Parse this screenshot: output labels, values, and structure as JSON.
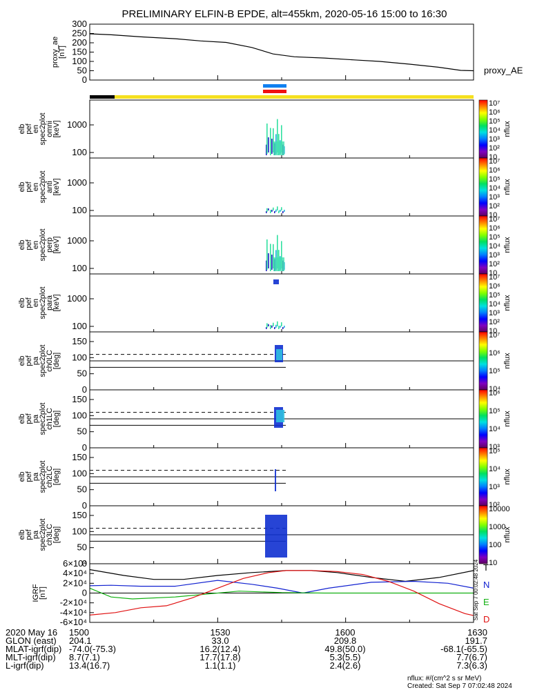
{
  "chart_data": {
    "type": "spectrogram-stack",
    "title": "PRELIMINARY ELFIN-B EPDE, alt=455km, 2020-05-16 15:00 to 16:30",
    "x_range": [
      "2020-05-16 15:00",
      "2020-05-16 16:30"
    ],
    "x_tick_labels": [
      "1500",
      "1530",
      "1600",
      "1630"
    ],
    "panels": [
      {
        "type": "line",
        "ylabel": [
          "proxy_ae",
          "[nT]"
        ],
        "ylim": [
          0,
          300
        ],
        "yticks": [
          "0",
          "50",
          "100",
          "150",
          "200",
          "250",
          "300"
        ],
        "series": [
          {
            "name": "proxy_AE",
            "color": "#000000",
            "points": [
              [
                0,
                248
              ],
              [
                5,
                243
              ],
              [
                12,
                232
              ],
              [
                20,
                222
              ],
              [
                26,
                210
              ],
              [
                32,
                202
              ],
              [
                38,
                175
              ],
              [
                43,
                140
              ],
              [
                48,
                125
              ],
              [
                55,
                118
              ],
              [
                62,
                108
              ],
              [
                68,
                100
              ],
              [
                75,
                85
              ],
              [
                82,
                68
              ],
              [
                87,
                52
              ],
              [
                90,
                50
              ]
            ]
          }
        ]
      },
      {
        "type": "spectrogram",
        "ylabel": [
          "elb",
          "pef",
          "en",
          "spec2plot",
          "omni",
          "[keV]"
        ],
        "yticks": [
          "100",
          "1000"
        ],
        "colorbar_label": "nflux",
        "colorbar_ticks": [
          "10",
          "10²",
          "10³",
          "10⁴",
          "10⁵",
          "10⁶",
          "10⁷"
        ]
      },
      {
        "type": "spectrogram",
        "ylabel": [
          "elb",
          "pef",
          "en",
          "spec2plot",
          "anti",
          "[keV]"
        ],
        "yticks": [
          "100",
          "1000"
        ],
        "colorbar_label": "nflux",
        "colorbar_ticks": [
          "10",
          "10²",
          "10³",
          "10⁴",
          "10⁵",
          "10⁶",
          "10⁷"
        ]
      },
      {
        "type": "spectrogram",
        "ylabel": [
          "elb",
          "pef",
          "en",
          "spec2plot",
          "perp",
          "[keV]"
        ],
        "yticks": [
          "100",
          "1000"
        ],
        "colorbar_label": "nflux",
        "colorbar_ticks": [
          "10",
          "10²",
          "10³",
          "10⁴",
          "10⁵",
          "10⁶",
          "10⁷"
        ]
      },
      {
        "type": "spectrogram",
        "ylabel": [
          "elb",
          "pef",
          "en",
          "spec2plot",
          "para",
          "[keV]"
        ],
        "yticks": [
          "100",
          "1000"
        ],
        "colorbar_label": "nflux",
        "colorbar_ticks": [
          "10",
          "10²",
          "10³",
          "10⁴",
          "10⁵",
          "10⁶",
          "10⁷"
        ]
      },
      {
        "type": "spectrogram",
        "ylabel": [
          "elb",
          "pef",
          "pa",
          "spec2plot",
          "ch0LC",
          "[deg]"
        ],
        "yticks": [
          "0",
          "50",
          "100",
          "150"
        ],
        "colorbar_label": "nflux",
        "colorbar_ticks": [
          "10⁴",
          "10⁵",
          "10⁶",
          "10⁷"
        ]
      },
      {
        "type": "spectrogram",
        "ylabel": [
          "elb",
          "pef",
          "pa",
          "spec2plot",
          "ch1LC",
          "[deg]"
        ],
        "yticks": [
          "0",
          "50",
          "100",
          "150"
        ],
        "colorbar_label": "nflux",
        "colorbar_ticks": [
          "10³",
          "10⁴",
          "10⁵",
          "10⁶"
        ]
      },
      {
        "type": "spectrogram",
        "ylabel": [
          "elb",
          "pef",
          "pa",
          "spec2plot",
          "ch2LC",
          "[deg]"
        ],
        "yticks": [
          "0",
          "50",
          "100",
          "150"
        ],
        "colorbar_label": "nflux",
        "colorbar_ticks": [
          "10²",
          "10³",
          "10⁴",
          "10⁵"
        ]
      },
      {
        "type": "spectrogram",
        "ylabel": [
          "elb",
          "pef",
          "pa",
          "spec2plot",
          "ch3LC",
          "[deg]"
        ],
        "yticks": [
          "0",
          "50",
          "100",
          "150"
        ],
        "colorbar_label": "nflux",
        "colorbar_ticks": [
          "10",
          "100",
          "1000",
          "10000"
        ]
      },
      {
        "type": "line",
        "ylabel": [
          "IGRF",
          "[nT]"
        ],
        "ylim": [
          -60000,
          60000
        ],
        "yticks": [
          "-6×10⁴",
          "-4×10⁴",
          "-2×10⁴",
          "0",
          "2×10⁴",
          "4×10⁴",
          "6×10⁴"
        ],
        "right_labels": [
          "T",
          "N",
          "E",
          "D"
        ],
        "series": [
          {
            "name": "T",
            "color": "#000000",
            "points": [
              [
                0,
                48000
              ],
              [
                8,
                36000
              ],
              [
                15,
                28000
              ],
              [
                22,
                28000
              ],
              [
                30,
                36000
              ],
              [
                38,
                42000
              ],
              [
                46,
                46000
              ],
              [
                52,
                46000
              ],
              [
                58,
                42000
              ],
              [
                66,
                32000
              ],
              [
                74,
                24000
              ],
              [
                82,
                32000
              ],
              [
                90,
                46000
              ]
            ]
          },
          {
            "name": "N",
            "color": "#1020d0",
            "points": [
              [
                0,
                15000
              ],
              [
                5,
                16000
              ],
              [
                12,
                14000
              ],
              [
                20,
                14000
              ],
              [
                30,
                26000
              ],
              [
                38,
                18000
              ],
              [
                44,
                10000
              ],
              [
                50,
                0
              ],
              [
                56,
                10000
              ],
              [
                66,
                22000
              ],
              [
                76,
                24000
              ],
              [
                84,
                20000
              ],
              [
                90,
                10000
              ]
            ]
          },
          {
            "name": "E",
            "color": "#10b010",
            "points": [
              [
                0,
                10000
              ],
              [
                5,
                -8000
              ],
              [
                10,
                -12000
              ],
              [
                20,
                -8000
              ],
              [
                35,
                4000
              ],
              [
                45,
                1000
              ],
              [
                55,
                0
              ],
              [
                70,
                0
              ],
              [
                80,
                0
              ],
              [
                90,
                0
              ]
            ]
          },
          {
            "name": "D",
            "color": "#e01010",
            "points": [
              [
                0,
                -45000
              ],
              [
                6,
                -40000
              ],
              [
                12,
                -30000
              ],
              [
                18,
                -26000
              ],
              [
                24,
                -10000
              ],
              [
                30,
                10000
              ],
              [
                36,
                30000
              ],
              [
                42,
                42000
              ],
              [
                46,
                46000
              ],
              [
                52,
                46000
              ],
              [
                58,
                44000
              ],
              [
                64,
                38000
              ],
              [
                70,
                24000
              ],
              [
                76,
                4000
              ],
              [
                82,
                -22000
              ],
              [
                88,
                -42000
              ],
              [
                90,
                -46000
              ]
            ]
          }
        ]
      }
    ]
  },
  "spec_label": "Sat Sep  7 00:02:48 2024",
  "footer": {
    "rows": [
      {
        "name": "2020 May 16",
        "values": [
          "1500",
          "1530",
          "1600",
          "1630"
        ]
      },
      {
        "name": "GLON (east)",
        "values": [
          "204.1",
          "33.0",
          "209.8",
          "191.7"
        ]
      },
      {
        "name": "MLAT-igrf(dip)",
        "values": [
          "-74.0(-75.3)",
          "16.2(12.4)",
          "49.8(50.0)",
          "-68.1(-65.5)"
        ]
      },
      {
        "name": "MLT-igrf(dip)",
        "values": [
          "8.7(7.1)",
          "17.7(17.8)",
          "5.3(5.5)",
          "7.7(6.7)"
        ]
      },
      {
        "name": "L-igrf(dip)",
        "values": [
          "13.4(16.7)",
          "1.1(1.1)",
          "2.4(2.6)",
          "7.3(6.3)"
        ]
      }
    ],
    "units_note": "nflux: #/(cm^2 s sr MeV)",
    "created": "Created: Sat Sep  7 07:02:48 2024"
  },
  "colors": {
    "state_bar_yellow": "#f5e020",
    "state_bar_black": "#000000",
    "marker_blue": "#1080f0",
    "marker_red": "#f01010"
  }
}
